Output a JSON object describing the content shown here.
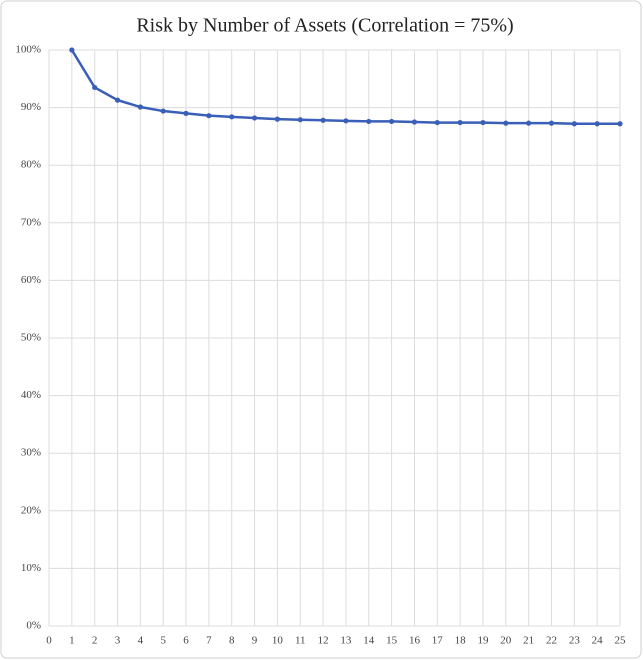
{
  "chart_data": {
    "type": "line",
    "title": "Risk by Number of Assets (Correlation = 75%)",
    "x": [
      1,
      2,
      3,
      4,
      5,
      6,
      7,
      8,
      9,
      10,
      11,
      12,
      13,
      14,
      15,
      16,
      17,
      18,
      19,
      20,
      21,
      22,
      23,
      24,
      25
    ],
    "series": [
      {
        "color": "#3a5fb8",
        "values": [
          100,
          93.5,
          91.3,
          90.1,
          89.4,
          89.0,
          88.6,
          88.4,
          88.2,
          88.0,
          87.9,
          87.8,
          87.7,
          87.6,
          87.6,
          87.5,
          87.4,
          87.4,
          87.4,
          87.3,
          87.3,
          87.3,
          87.2,
          87.2,
          87.2
        ]
      }
    ],
    "xlim": [
      0,
      25
    ],
    "xticks": [
      0,
      1,
      2,
      3,
      4,
      5,
      6,
      7,
      8,
      9,
      10,
      11,
      12,
      13,
      14,
      15,
      16,
      17,
      18,
      19,
      20,
      21,
      22,
      23,
      24,
      25
    ],
    "ylim": [
      0,
      100
    ],
    "yticks": [
      {
        "value": 0,
        "label": "0%"
      },
      {
        "value": 10,
        "label": "10%"
      },
      {
        "value": 20,
        "label": "20%"
      },
      {
        "value": 30,
        "label": "30%"
      },
      {
        "value": 40,
        "label": "40%"
      },
      {
        "value": 50,
        "label": "50%"
      },
      {
        "value": 60,
        "label": "60%"
      },
      {
        "value": 70,
        "label": "70%"
      },
      {
        "value": 80,
        "label": "80%"
      },
      {
        "value": 90,
        "label": "90%"
      },
      {
        "value": 100,
        "label": "100%"
      }
    ],
    "grid": true
  }
}
